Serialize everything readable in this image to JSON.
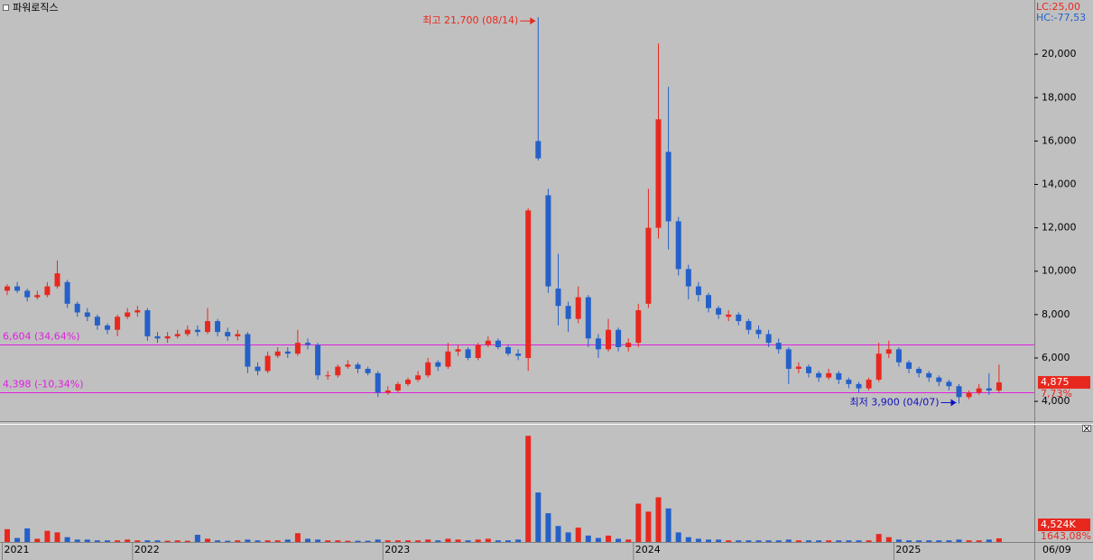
{
  "chart_data": {
    "type": "candlestick",
    "title": "파워로직스",
    "lc_label": "LC:25,00",
    "hc_label": "HC:-77,53",
    "date_label": "06/09",
    "up_color": "#e8281e",
    "down_color": "#2460c8",
    "level_color": "#e020e0",
    "categories": [
      "2021",
      null,
      null,
      null,
      null,
      null,
      null,
      null,
      null,
      null,
      null,
      null,
      null,
      "2022",
      null,
      null,
      null,
      null,
      null,
      null,
      null,
      null,
      null,
      null,
      null,
      null,
      null,
      null,
      null,
      null,
      null,
      null,
      null,
      null,
      null,
      null,
      null,
      null,
      "2023",
      null,
      null,
      null,
      null,
      null,
      null,
      null,
      null,
      null,
      null,
      null,
      null,
      null,
      null,
      null,
      null,
      null,
      null,
      null,
      null,
      null,
      null,
      null,
      null,
      "2024",
      null,
      null,
      null,
      null,
      null,
      null,
      null,
      null,
      null,
      null,
      null,
      null,
      null,
      null,
      null,
      null,
      null,
      null,
      null,
      null,
      null,
      null,
      null,
      null,
      null,
      "2025",
      null,
      null,
      null,
      null,
      null,
      null,
      null,
      null,
      null,
      null
    ],
    "open": [
      9100,
      9300,
      9100,
      8800,
      8900,
      9300,
      9500,
      8500,
      8100,
      7900,
      7500,
      7300,
      7900,
      8100,
      8200,
      7000,
      6900,
      7000,
      7100,
      7300,
      7200,
      7700,
      7200,
      7000,
      7100,
      5600,
      5400,
      6100,
      6300,
      6200,
      6700,
      6600,
      5200,
      5200,
      5600,
      5700,
      5500,
      5300,
      4400,
      4500,
      4800,
      5000,
      5200,
      5800,
      5600,
      6300,
      6400,
      6000,
      6600,
      6800,
      6500,
      6200,
      6000,
      16000,
      13500,
      9200,
      8400,
      7800,
      8800,
      6900,
      6400,
      7300,
      6500,
      6700,
      8500,
      12000,
      15500,
      12300,
      10100,
      9300,
      8900,
      8300,
      7900,
      8000,
      7700,
      7300,
      7100,
      6700,
      6400,
      5500,
      5600,
      5300,
      5100,
      5300,
      5000,
      4800,
      4600,
      5000,
      6200,
      6400,
      5800,
      5500,
      5300,
      5100,
      4900,
      4700,
      4200,
      4400,
      4600,
      4500
    ],
    "high": [
      9400,
      9500,
      9200,
      9100,
      9500,
      10500,
      9600,
      8600,
      8300,
      8000,
      7600,
      8000,
      8300,
      8400,
      8300,
      7200,
      7200,
      7300,
      7500,
      7500,
      8300,
      7800,
      7400,
      7300,
      7200,
      5800,
      6300,
      6500,
      6500,
      7300,
      6900,
      6700,
      5400,
      5700,
      5900,
      5800,
      5600,
      5400,
      4700,
      4900,
      5100,
      5400,
      6000,
      5900,
      6700,
      6600,
      6500,
      6700,
      7000,
      6900,
      6600,
      6400,
      12900,
      21700,
      13800,
      10800,
      8600,
      9300,
      8900,
      7100,
      7800,
      7400,
      6900,
      8500,
      13800,
      20500,
      18500,
      12500,
      10300,
      9500,
      9000,
      8400,
      8200,
      8100,
      7800,
      7500,
      7300,
      6900,
      6500,
      5800,
      5700,
      5400,
      5500,
      5400,
      5100,
      4900,
      5100,
      6700,
      6800,
      6500,
      5900,
      5600,
      5400,
      5200,
      5000,
      4800,
      4500,
      4800,
      5300,
      5700
    ],
    "low": [
      8900,
      9000,
      8600,
      8700,
      8800,
      9200,
      8300,
      7900,
      7700,
      7300,
      7100,
      7000,
      7800,
      7900,
      6800,
      6700,
      6700,
      6900,
      7000,
      7000,
      7100,
      7000,
      6800,
      6800,
      5300,
      5200,
      5300,
      6000,
      6000,
      6100,
      6400,
      5000,
      5000,
      5100,
      5500,
      5300,
      5200,
      4200,
      4300,
      4400,
      4700,
      4900,
      5100,
      5400,
      5500,
      6100,
      5900,
      5900,
      6500,
      6400,
      6100,
      5900,
      5400,
      15100,
      9000,
      7500,
      7200,
      7600,
      6500,
      6000,
      6300,
      6300,
      6300,
      6500,
      8300,
      11500,
      11000,
      9800,
      8700,
      8600,
      8100,
      7800,
      7700,
      7500,
      7100,
      6900,
      6500,
      6200,
      4800,
      5300,
      5100,
      4900,
      5000,
      4800,
      4600,
      4400,
      4500,
      4900,
      6000,
      5600,
      5300,
      5100,
      4900,
      4700,
      4500,
      3900,
      4100,
      4300,
      4300,
      4400
    ],
    "close": [
      9300,
      9100,
      8800,
      8900,
      9300,
      9900,
      8500,
      8100,
      7900,
      7500,
      7300,
      7900,
      8100,
      8200,
      7000,
      6900,
      7000,
      7100,
      7300,
      7200,
      7700,
      7200,
      7000,
      7100,
      5600,
      5400,
      6100,
      6300,
      6200,
      6700,
      6600,
      5200,
      5200,
      5600,
      5700,
      5500,
      5300,
      4400,
      4500,
      4800,
      5000,
      5200,
      5800,
      5600,
      6300,
      6400,
      6000,
      6600,
      6800,
      6500,
      6200,
      6100,
      12800,
      15200,
      9300,
      8400,
      7800,
      8800,
      6900,
      6400,
      7300,
      6500,
      6700,
      8200,
      12000,
      17000,
      12300,
      10100,
      9300,
      8900,
      8300,
      8000,
      8000,
      7700,
      7300,
      7100,
      6700,
      6400,
      5500,
      5600,
      5300,
      5100,
      5300,
      5000,
      4800,
      4600,
      5000,
      6200,
      6400,
      5800,
      5500,
      5300,
      5100,
      4900,
      4700,
      4200,
      4400,
      4600,
      4500,
      4875
    ],
    "volume": [
      16000000,
      5000000,
      17000000,
      4000000,
      14000000,
      12000000,
      6000000,
      3000000,
      3000000,
      2000000,
      2000000,
      2000000,
      3000000,
      2000000,
      2000000,
      2000000,
      1500000,
      2000000,
      1500000,
      9000000,
      4000000,
      2000000,
      1500000,
      2000000,
      3000000,
      2000000,
      2000000,
      2000000,
      3000000,
      11000000,
      4000000,
      3000000,
      2000000,
      2000000,
      1500000,
      1500000,
      1500000,
      3000000,
      2000000,
      2000000,
      2000000,
      2000000,
      3000000,
      2000000,
      4000000,
      3000000,
      2000000,
      3000000,
      4000000,
      2000000,
      2000000,
      3000000,
      133000000,
      62000000,
      36000000,
      20000000,
      12000000,
      18000000,
      8000000,
      5000000,
      8000000,
      4000000,
      3000000,
      48000000,
      38000000,
      56000000,
      42000000,
      12000000,
      6000000,
      4000000,
      3000000,
      3000000,
      2000000,
      2000000,
      2000000,
      2000000,
      2000000,
      2000000,
      3000000,
      2000000,
      2000000,
      2000000,
      2000000,
      2000000,
      2000000,
      2000000,
      2000000,
      10000000,
      6000000,
      3000000,
      2000000,
      2000000,
      2000000,
      2000000,
      2000000,
      3000000,
      2000000,
      2000000,
      3000000,
      4524000
    ],
    "ylim": [
      3090,
      22500
    ],
    "yticks": [
      {
        "value": 4000,
        "label": "4,000"
      },
      {
        "value": 6000,
        "label": "6,000"
      },
      {
        "value": 8000,
        "label": "8,000"
      },
      {
        "value": 10000,
        "label": "10,000"
      },
      {
        "value": 12000,
        "label": "12,000"
      },
      {
        "value": 14000,
        "label": "14,000"
      },
      {
        "value": 16000,
        "label": "16,000"
      },
      {
        "value": 18000,
        "label": "18,000"
      },
      {
        "value": 20000,
        "label": "20,000"
      }
    ],
    "volume_ylim": [
      0,
      148000000
    ],
    "levels": [
      {
        "value": 6604,
        "label": "6,604 (34,64%)"
      },
      {
        "value": 4398,
        "label": "4,398 (-10,34%)"
      }
    ],
    "high_note": {
      "value": 21700,
      "label": "최고 21,700 (08/14)"
    },
    "low_note": {
      "value": 3900,
      "label": "최저 3,900 (04/07)"
    },
    "last_price": {
      "value": 4875,
      "label": "4,875"
    },
    "change_label": "7,73%",
    "last_volume": {
      "value": 4524000,
      "label": "4,524K"
    },
    "volume_change_label": "1643,08%"
  }
}
